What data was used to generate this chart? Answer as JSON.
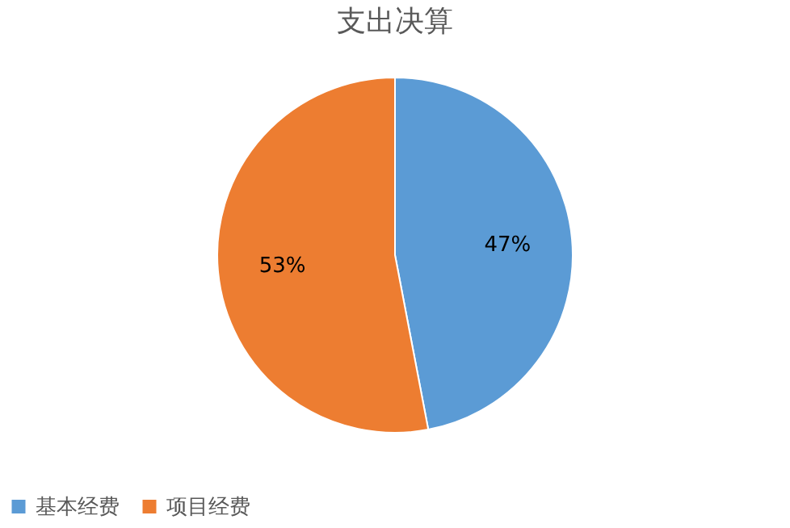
{
  "chart_data": {
    "type": "pie",
    "title": "支出决算",
    "categories": [
      "基本经费",
      "项目经费"
    ],
    "values": [
      47,
      53
    ],
    "colors": [
      "#5b9bd5",
      "#ed7d31"
    ],
    "value_labels": [
      "47%",
      "53%"
    ],
    "legend": "bottom"
  }
}
